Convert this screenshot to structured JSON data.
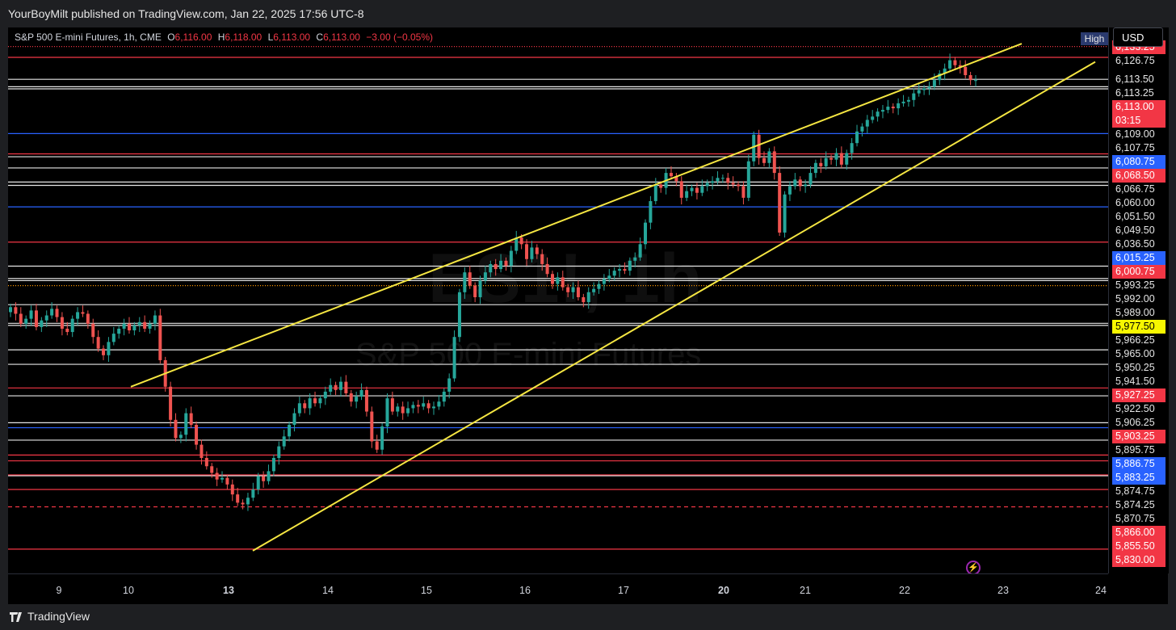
{
  "header": {
    "published": "YourBoyMilt published on TradingView.com, Jan 22, 2025 17:56 UTC-8"
  },
  "legend": {
    "symbol": "S&P 500 E-mini Futures, 1h, CME",
    "o_label": "O",
    "o_value": "6,116.00",
    "h_label": "H",
    "h_value": "6,118.00",
    "l_label": "L",
    "l_value": "6,113.00",
    "c_label": "C",
    "c_value": "6,113.00",
    "change": "−3.00 (−0.05%)"
  },
  "watermark": {
    "ticker": "ES1!, 1h",
    "name": "S&P 500 E-mini Futures"
  },
  "controls": {
    "currency": "USD",
    "high_tag": "High"
  },
  "footer": {
    "brand": "TradingView"
  },
  "colors": {
    "up": "#26a69a",
    "down": "#ef5350",
    "trend": "#f5e642",
    "red_level": "#f23645",
    "blue_level": "#2962ff",
    "white_level": "#ffffff"
  },
  "chart_data": {
    "type": "candlestick",
    "title": "S&P 500 E-mini Futures, 1h, CME",
    "x_ticks": [
      {
        "label": "9",
        "bold": false
      },
      {
        "label": "10",
        "bold": false
      },
      {
        "label": "13",
        "bold": true
      },
      {
        "label": "14",
        "bold": false
      },
      {
        "label": "15",
        "bold": false
      },
      {
        "label": "16",
        "bold": false
      },
      {
        "label": "17",
        "bold": false
      },
      {
        "label": "20",
        "bold": true
      },
      {
        "label": "21",
        "bold": false
      },
      {
        "label": "22",
        "bold": false
      },
      {
        "label": "23",
        "bold": false
      },
      {
        "label": "24",
        "bold": false
      }
    ],
    "price_labels": [
      {
        "price": 6133.25,
        "text": "6,133.25",
        "style": "red"
      },
      {
        "price": 6126.75,
        "text": "6,126.75",
        "style": "white"
      },
      {
        "price": 6113.5,
        "text": "6,113.50",
        "style": "white"
      },
      {
        "price": 6113.25,
        "text": "6,113.25",
        "style": "white"
      },
      {
        "price": 6113.0,
        "text": "6,113.00",
        "style": "red",
        "extra": "03:15"
      },
      {
        "price": 6109.0,
        "text": "6,109.00",
        "style": "white"
      },
      {
        "price": 6107.75,
        "text": "6,107.75",
        "style": "white"
      },
      {
        "price": 6080.75,
        "text": "6,080.75",
        "style": "blue"
      },
      {
        "price": 6068.5,
        "text": "6,068.50",
        "style": "red"
      },
      {
        "price": 6066.75,
        "text": "6,066.75",
        "style": "white"
      },
      {
        "price": 6060.0,
        "text": "6,060.00",
        "style": "white"
      },
      {
        "price": 6051.5,
        "text": "6,051.50",
        "style": "white"
      },
      {
        "price": 6049.5,
        "text": "6,049.50",
        "style": "white"
      },
      {
        "price": 6036.5,
        "text": "6,036.50",
        "style": "white"
      },
      {
        "price": 6015.25,
        "text": "6,015.25",
        "style": "blue"
      },
      {
        "price": 6000.75,
        "text": "6,000.75",
        "style": "red"
      },
      {
        "price": 5993.25,
        "text": "5,993.25",
        "style": "white"
      },
      {
        "price": 5992.0,
        "text": "5,992.00",
        "style": "white"
      },
      {
        "price": 5989.0,
        "text": "5,989.00",
        "style": "white"
      },
      {
        "price": 5977.5,
        "text": "5,977.50",
        "style": "yellow"
      },
      {
        "price": 5966.25,
        "text": "5,966.25",
        "style": "white"
      },
      {
        "price": 5965.0,
        "text": "5,965.00",
        "style": "white"
      },
      {
        "price": 5950.25,
        "text": "5,950.25",
        "style": "white"
      },
      {
        "price": 5941.5,
        "text": "5,941.50",
        "style": "white"
      },
      {
        "price": 5927.25,
        "text": "5,927.25",
        "style": "red"
      },
      {
        "price": 5922.5,
        "text": "5,922.50",
        "style": "white"
      },
      {
        "price": 5906.25,
        "text": "5,906.25",
        "style": "white"
      },
      {
        "price": 5903.25,
        "text": "5,903.25",
        "style": "red"
      },
      {
        "price": 5895.75,
        "text": "5,895.75",
        "style": "white"
      },
      {
        "price": 5886.75,
        "text": "5,886.75",
        "style": "blue"
      },
      {
        "price": 5883.25,
        "text": "5,883.25",
        "style": "blue"
      },
      {
        "price": 5874.75,
        "text": "5,874.75",
        "style": "white"
      },
      {
        "price": 5874.25,
        "text": "5,874.25",
        "style": "white"
      },
      {
        "price": 5870.75,
        "text": "5,870.75",
        "style": "white"
      },
      {
        "price": 5866.0,
        "text": "5,866.00",
        "style": "red"
      },
      {
        "price": 5855.5,
        "text": "5,855.50",
        "style": "red"
      },
      {
        "price": 5830.0,
        "text": "5,830.00",
        "style": "red"
      }
    ],
    "levels": [
      {
        "price": 6133.25,
        "color": "red",
        "style": "dotted"
      },
      {
        "price": 6126.75,
        "color": "red",
        "style": "solid"
      },
      {
        "price": 6113.5,
        "color": "white",
        "style": "solid"
      },
      {
        "price": 6109.0,
        "color": "white",
        "style": "solid"
      },
      {
        "price": 6107.75,
        "color": "white",
        "style": "solid"
      },
      {
        "price": 6080.75,
        "color": "blue",
        "style": "solid"
      },
      {
        "price": 6068.5,
        "color": "red",
        "style": "solid"
      },
      {
        "price": 6066.75,
        "color": "white",
        "style": "solid"
      },
      {
        "price": 6060.0,
        "color": "white",
        "style": "solid"
      },
      {
        "price": 6051.5,
        "color": "white",
        "style": "solid"
      },
      {
        "price": 6049.5,
        "color": "white",
        "style": "solid"
      },
      {
        "price": 6036.5,
        "color": "blue",
        "style": "solid"
      },
      {
        "price": 6015.25,
        "color": "red",
        "style": "solid"
      },
      {
        "price": 6000.75,
        "color": "white",
        "style": "solid"
      },
      {
        "price": 5993.25,
        "color": "white",
        "style": "solid"
      },
      {
        "price": 5992.0,
        "color": "white",
        "style": "solid"
      },
      {
        "price": 5989.0,
        "color": "orange",
        "style": "dotted"
      },
      {
        "price": 5977.5,
        "color": "white",
        "style": "solid"
      },
      {
        "price": 5966.25,
        "color": "white",
        "style": "solid"
      },
      {
        "price": 5965.0,
        "color": "white",
        "style": "solid"
      },
      {
        "price": 5950.25,
        "color": "white",
        "style": "solid"
      },
      {
        "price": 5941.5,
        "color": "white",
        "style": "solid"
      },
      {
        "price": 5927.25,
        "color": "red",
        "style": "solid"
      },
      {
        "price": 5922.5,
        "color": "white",
        "style": "solid"
      },
      {
        "price": 5906.25,
        "color": "white",
        "style": "solid"
      },
      {
        "price": 5903.25,
        "color": "blue",
        "style": "solid"
      },
      {
        "price": 5895.75,
        "color": "white",
        "style": "solid"
      },
      {
        "price": 5886.75,
        "color": "red",
        "style": "solid"
      },
      {
        "price": 5883.25,
        "color": "red",
        "style": "solid"
      },
      {
        "price": 5874.75,
        "color": "red",
        "style": "solid"
      },
      {
        "price": 5874.25,
        "color": "white",
        "style": "solid"
      },
      {
        "price": 5866.0,
        "color": "red",
        "style": "solid"
      },
      {
        "price": 5855.5,
        "color": "red",
        "style": "dashed"
      },
      {
        "price": 5830.0,
        "color": "red",
        "style": "solid"
      }
    ],
    "trendlines": [
      {
        "x1": 1.3,
        "y1": 5928,
        "x2": 14.5,
        "y2": 6135
      },
      {
        "x1": 4.4,
        "y1": 5829,
        "x2": 15.3,
        "y2": 6124
      }
    ],
    "closes": [
      5976,
      5972,
      5966,
      5969,
      5974,
      5964,
      5968,
      5971,
      5975,
      5970,
      5963,
      5961,
      5969,
      5973,
      5972,
      5966,
      5958,
      5951,
      5947,
      5955,
      5960,
      5963,
      5966,
      5962,
      5965,
      5967,
      5963,
      5966,
      5971,
      5944,
      5928,
      5908,
      5897,
      5899,
      5912,
      5905,
      5893,
      5885,
      5880,
      5876,
      5872,
      5873,
      5869,
      5863,
      5858,
      5857,
      5861,
      5866,
      5874,
      5871,
      5877,
      5885,
      5892,
      5898,
      5905,
      5912,
      5918,
      5915,
      5921,
      5918,
      5921,
      5925,
      5929,
      5926,
      5931,
      5924,
      5919,
      5922,
      5926,
      5913,
      5895,
      5890,
      5904,
      5921,
      5913,
      5916,
      5912,
      5915,
      5917,
      5916,
      5918,
      5915,
      5916,
      5919,
      5925,
      5933,
      5958,
      5985,
      5997,
      5989,
      5982,
      5992,
      5997,
      6002,
      5999,
      6004,
      6001,
      6010,
      6018,
      6014,
      6005,
      6012,
      6008,
      6002,
      5996,
      5990,
      5994,
      5988,
      5985,
      5988,
      5982,
      5979,
      5985,
      5987,
      5990,
      5993,
      5995,
      5998,
      5999,
      5998,
      6004,
      6006,
      6014,
      6027,
      6040,
      6050,
      6048,
      6057,
      6055,
      6052,
      6042,
      6046,
      6048,
      6045,
      6049,
      6051,
      6052,
      6054,
      6054,
      6051,
      6050,
      6049,
      6042,
      6064,
      6080,
      6066,
      6063,
      6070,
      6057,
      6021,
      6044,
      6049,
      6053,
      6049,
      6050,
      6057,
      6063,
      6061,
      6066,
      6065,
      6069,
      6062,
      6069,
      6075,
      6082,
      6085,
      6089,
      6091,
      6094,
      6095,
      6097,
      6096,
      6099,
      6100,
      6101,
      6105,
      6107,
      6108,
      6109,
      6113,
      6117,
      6120,
      6125,
      6122,
      6121,
      6116,
      6113,
      6113
    ],
    "candle_x_start": 8.3,
    "candle_x_step": 0.0833,
    "current_price": 6113.0,
    "countdown": "03:15",
    "y_range": [
      5827,
      6136
    ]
  }
}
